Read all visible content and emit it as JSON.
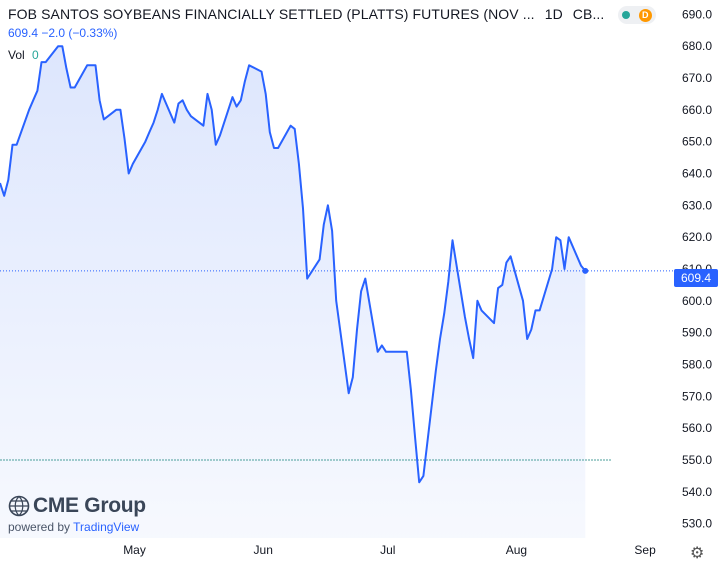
{
  "header": {
    "title": "FOB SANTOS SOYBEANS FINANCIALLY SETTLED (PLATTS) FUTURES (NOV ...",
    "interval": "1D",
    "exchange": "CB...",
    "last_price": "609.4",
    "change": "−2.0 (−0.33%)",
    "vol_label": "Vol",
    "vol_value": "0",
    "status_letter": "D"
  },
  "branding": {
    "logo_text": "CME Group",
    "powered_prefix": "powered by",
    "powered_brand": "TradingView"
  },
  "price_badge": "609.4",
  "colors": {
    "line": "#2962ff",
    "fill": "#dde6fd",
    "grid": "#f0f3fa",
    "axis_text": "#131722",
    "ref_line": "#4a9d9a",
    "up": "#26a69a",
    "status": "#ff9800"
  },
  "chart_data": {
    "type": "area",
    "title": "FOB SANTOS SOYBEANS FINANCIALLY SETTLED (PLATTS) FUTURES (NOV ...",
    "x_tick_labels": [
      "May",
      "Jun",
      "Jul",
      "Aug",
      "Sep"
    ],
    "x_ticks": [
      "2024-05-01",
      "2024-06-01",
      "2024-07-01",
      "2024-08-01",
      "2024-09-01"
    ],
    "y_tick_labels": [
      "530.0",
      "540.0",
      "550.0",
      "560.0",
      "570.0",
      "580.0",
      "590.0",
      "600.0",
      "610.0",
      "620.0",
      "630.0",
      "640.0",
      "650.0",
      "660.0",
      "670.0",
      "680.0",
      "690.0"
    ],
    "ylim": [
      525.5,
      694.5
    ],
    "xlim": [
      "2024-04-01",
      "2024-09-07"
    ],
    "last_value": 609.4,
    "reference_line": 550.0,
    "grid": false,
    "series": [
      {
        "values": [
          [
            "2024-04-01",
            637
          ],
          [
            "2024-04-02",
            633
          ],
          [
            "2024-04-03",
            638
          ],
          [
            "2024-04-04",
            649
          ],
          [
            "2024-04-05",
            649
          ],
          [
            "2024-04-08",
            660
          ],
          [
            "2024-04-09",
            663
          ],
          [
            "2024-04-10",
            666
          ],
          [
            "2024-04-11",
            675
          ],
          [
            "2024-04-12",
            675
          ],
          [
            "2024-04-15",
            680
          ],
          [
            "2024-04-16",
            680
          ],
          [
            "2024-04-17",
            673
          ],
          [
            "2024-04-18",
            667
          ],
          [
            "2024-04-19",
            667
          ],
          [
            "2024-04-22",
            674
          ],
          [
            "2024-04-23",
            674
          ],
          [
            "2024-04-24",
            674
          ],
          [
            "2024-04-25",
            663
          ],
          [
            "2024-04-26",
            657
          ],
          [
            "2024-04-29",
            660
          ],
          [
            "2024-04-30",
            660
          ],
          [
            "2024-05-01",
            651
          ],
          [
            "2024-05-02",
            640
          ],
          [
            "2024-05-03",
            643
          ],
          [
            "2024-05-06",
            650
          ],
          [
            "2024-05-07",
            653
          ],
          [
            "2024-05-08",
            656
          ],
          [
            "2024-05-09",
            660
          ],
          [
            "2024-05-10",
            665
          ],
          [
            "2024-05-13",
            656
          ],
          [
            "2024-05-14",
            662
          ],
          [
            "2024-05-15",
            663
          ],
          [
            "2024-05-16",
            660
          ],
          [
            "2024-05-17",
            658
          ],
          [
            "2024-05-20",
            655
          ],
          [
            "2024-05-21",
            665
          ],
          [
            "2024-05-22",
            660
          ],
          [
            "2024-05-23",
            649
          ],
          [
            "2024-05-24",
            652
          ],
          [
            "2024-05-27",
            664
          ],
          [
            "2024-05-28",
            661
          ],
          [
            "2024-05-29",
            663
          ],
          [
            "2024-05-30",
            669
          ],
          [
            "2024-05-31",
            674
          ],
          [
            "2024-06-03",
            672
          ],
          [
            "2024-06-04",
            665
          ],
          [
            "2024-06-05",
            653
          ],
          [
            "2024-06-06",
            648
          ],
          [
            "2024-06-07",
            648
          ],
          [
            "2024-06-10",
            655
          ],
          [
            "2024-06-11",
            654
          ],
          [
            "2024-06-12",
            643
          ],
          [
            "2024-06-13",
            629
          ],
          [
            "2024-06-14",
            607
          ],
          [
            "2024-06-17",
            613
          ],
          [
            "2024-06-18",
            624
          ],
          [
            "2024-06-19",
            630
          ],
          [
            "2024-06-20",
            622
          ],
          [
            "2024-06-21",
            600
          ],
          [
            "2024-06-24",
            571
          ],
          [
            "2024-06-25",
            576
          ],
          [
            "2024-06-26",
            591
          ],
          [
            "2024-06-27",
            603
          ],
          [
            "2024-06-28",
            607
          ],
          [
            "2024-07-01",
            584
          ],
          [
            "2024-07-02",
            586
          ],
          [
            "2024-07-03",
            584
          ],
          [
            "2024-07-05",
            584
          ],
          [
            "2024-07-08",
            584
          ],
          [
            "2024-07-09",
            572
          ],
          [
            "2024-07-10",
            557
          ],
          [
            "2024-07-11",
            543
          ],
          [
            "2024-07-12",
            545
          ],
          [
            "2024-07-15",
            578
          ],
          [
            "2024-07-16",
            588
          ],
          [
            "2024-07-17",
            596
          ],
          [
            "2024-07-18",
            606
          ],
          [
            "2024-07-19",
            619
          ],
          [
            "2024-07-22",
            595
          ],
          [
            "2024-07-23",
            588
          ],
          [
            "2024-07-24",
            582
          ],
          [
            "2024-07-25",
            600
          ],
          [
            "2024-07-26",
            597
          ],
          [
            "2024-07-29",
            593
          ],
          [
            "2024-07-30",
            604
          ],
          [
            "2024-07-31",
            605
          ],
          [
            "2024-08-01",
            612
          ],
          [
            "2024-08-02",
            614
          ],
          [
            "2024-08-05",
            600
          ],
          [
            "2024-08-06",
            588
          ],
          [
            "2024-08-07",
            591
          ],
          [
            "2024-08-08",
            597
          ],
          [
            "2024-08-09",
            597
          ],
          [
            "2024-08-12",
            610
          ],
          [
            "2024-08-13",
            620
          ],
          [
            "2024-08-14",
            619
          ],
          [
            "2024-08-15",
            610
          ],
          [
            "2024-08-16",
            620
          ],
          [
            "2024-08-19",
            611
          ],
          [
            "2024-08-20",
            609.4
          ]
        ]
      }
    ]
  }
}
